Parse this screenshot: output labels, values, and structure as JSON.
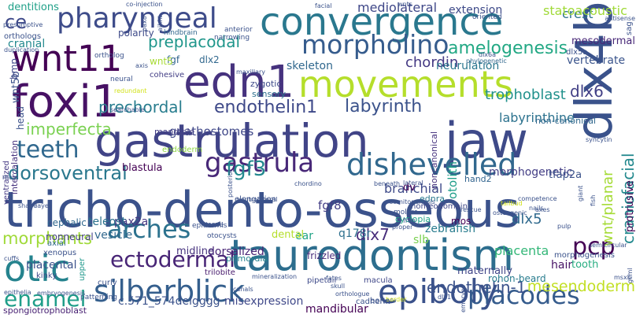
{
  "word_cloud": {
    "background": "#ffffff",
    "palette": [
      "#440154",
      "#46327e",
      "#365c8d",
      "#277f8e",
      "#1fa187",
      "#4ac16d",
      "#a0da39",
      "#d2e21b"
    ],
    "words": [
      {
        "text": "tricho-dento-osseous",
        "color": "#3b528b"
      },
      {
        "text": "taurodontism",
        "color": "#2d6e8e"
      },
      {
        "text": "gastrulation",
        "color": "#414487"
      },
      {
        "text": "convergence",
        "color": "#2a788e"
      },
      {
        "text": "movements",
        "color": "#b5de2b"
      },
      {
        "text": "dlx4b",
        "color": "#3a528b"
      },
      {
        "text": "jaw",
        "color": "#3e4a89"
      },
      {
        "text": "edn1",
        "color": "#46327e"
      },
      {
        "text": "foxi1",
        "color": "#471164"
      },
      {
        "text": "wnt11",
        "color": "#440154"
      },
      {
        "text": "pharyngeal",
        "color": "#3e4c8a"
      },
      {
        "text": "otic",
        "color": "#25838e"
      },
      {
        "text": "epiboly",
        "color": "#3b528b"
      },
      {
        "text": "silberblick",
        "color": "#355f8d"
      },
      {
        "text": "dishevelled",
        "color": "#31688e"
      },
      {
        "text": "gastrula",
        "color": "#482878"
      },
      {
        "text": "morpholino",
        "color": "#365c8d"
      },
      {
        "text": "placodes",
        "color": "#365c8d"
      },
      {
        "text": "arches",
        "color": "#2c728e"
      },
      {
        "text": "pcp",
        "color": "#440154"
      },
      {
        "text": "ectodermal",
        "color": "#482576"
      },
      {
        "text": "teeth",
        "color": "#30688e"
      },
      {
        "text": "enamel",
        "color": "#1f9e89"
      },
      {
        "text": "fgf3",
        "color": "#23898e"
      },
      {
        "text": "ce",
        "color": "#3e4989"
      },
      {
        "text": "prechordal",
        "color": "#287d8e"
      },
      {
        "text": "endothelin1",
        "color": "#3e4989"
      },
      {
        "text": "labyrinth",
        "color": "#3b528b"
      },
      {
        "text": "dorsoventral",
        "color": "#2a788e"
      },
      {
        "text": "amelogenesis",
        "color": "#22a884"
      },
      {
        "text": "wnt/planar",
        "color": "#a5db36"
      },
      {
        "text": "craniofacial",
        "color": "#23898e"
      },
      {
        "text": "preplacodal",
        "color": "#1f968b"
      },
      {
        "text": "morphants",
        "color": "#a0da39"
      },
      {
        "text": "mesendoderm",
        "color": "#c2df23"
      },
      {
        "text": "imperfecta",
        "color": "#7ad151"
      },
      {
        "text": "endothelin-1",
        "color": "#3b528b"
      },
      {
        "text": "dlx6",
        "color": "#424086"
      },
      {
        "text": "mediolateral",
        "color": "#3f4788"
      },
      {
        "text": "trophoblast",
        "color": "#21918c"
      },
      {
        "text": "labyrinthine",
        "color": "#2c728e"
      },
      {
        "text": "otolith",
        "color": "#1f9e89"
      },
      {
        "text": "crest",
        "color": "#2c728e"
      },
      {
        "text": "dlx7",
        "color": "#472d7b"
      },
      {
        "text": "dlx5",
        "color": "#306a8e"
      },
      {
        "text": "mandibular",
        "color": "#440154"
      },
      {
        "text": "chordin",
        "color": "#443983"
      },
      {
        "text": "skeleton",
        "color": "#31688e"
      },
      {
        "text": "placenta",
        "color": "#35b779"
      },
      {
        "text": "fgf8",
        "color": "#433e85"
      },
      {
        "text": "branchial",
        "color": "#3e4a89"
      },
      {
        "text": "gnathostomes",
        "color": "#3f4788"
      },
      {
        "text": "morphogenetic",
        "color": "#433e85"
      },
      {
        "text": "dorsalized",
        "color": "#482475"
      },
      {
        "text": "midline",
        "color": "#46327e"
      },
      {
        "text": "vertebrate",
        "color": "#3a548c"
      },
      {
        "text": "neurulation",
        "color": "#2a768e"
      },
      {
        "text": "placental",
        "color": "#3b528b"
      },
      {
        "text": "cranial",
        "color": "#23898e"
      },
      {
        "text": "dentitions",
        "color": "#1fa088"
      },
      {
        "text": "statoacoustic",
        "color": "#a0da39"
      },
      {
        "text": "extension",
        "color": "#3e4a89"
      },
      {
        "text": "protrusive",
        "color": "#440154"
      },
      {
        "text": "hair",
        "color": "#471365"
      },
      {
        "text": "tooth",
        "color": "#27ad81"
      },
      {
        "text": "maternally",
        "color": "#404588"
      },
      {
        "text": "ear",
        "color": "#20a386"
      },
      {
        "text": "pax2a",
        "color": "#453882"
      },
      {
        "text": "vesicle",
        "color": "#31688e"
      },
      {
        "text": "zebrafish",
        "color": "#287c8e"
      },
      {
        "text": "q178r",
        "color": "#2d708e"
      },
      {
        "text": "slb",
        "color": "#7ad151"
      },
      {
        "text": "c.571_574delgggg",
        "color": "#3b528b"
      },
      {
        "text": "misexpression",
        "color": "#3f4889"
      },
      {
        "text": "spongiotrophoblast",
        "color": "#482173"
      },
      {
        "text": "rohon-beard",
        "color": "#287c8e"
      },
      {
        "text": "dv",
        "color": "#440154"
      },
      {
        "text": "ednra",
        "color": "#29798e"
      },
      {
        "text": "mos",
        "color": "#440154"
      },
      {
        "text": "polarity",
        "color": "#3e4a89"
      },
      {
        "text": "fgf",
        "color": "#32648e"
      },
      {
        "text": "wnt5",
        "color": "#a8db34"
      },
      {
        "text": "dlx2",
        "color": "#31688e"
      },
      {
        "text": "blastula",
        "color": "#440154"
      },
      {
        "text": "sensory",
        "color": "#2d708e"
      },
      {
        "text": "zygotic",
        "color": "#3e4a89"
      },
      {
        "text": "mandible",
        "color": "#433e85"
      },
      {
        "text": "endoderm",
        "color": "#8fd744"
      },
      {
        "text": "hand2",
        "color": "#32648e"
      },
      {
        "text": "tfap2a",
        "color": "#3b528b"
      },
      {
        "text": "teleost",
        "color": "#2c728e"
      },
      {
        "text": "cephalic",
        "color": "#31688e"
      },
      {
        "text": "nonneural",
        "color": "#433e85"
      },
      {
        "text": "dental",
        "color": "#b5de2b"
      },
      {
        "text": "primordia",
        "color": "#26828e"
      },
      {
        "text": "frizzled",
        "color": "#472d7b"
      },
      {
        "text": "homeodomain",
        "color": "#3f4788"
      },
      {
        "text": "cyclopia",
        "color": "#20a386"
      },
      {
        "text": "axial",
        "color": "#31688e"
      },
      {
        "text": "xenopus",
        "color": "#3b528b"
      },
      {
        "text": "upper",
        "color": "#1f988b"
      },
      {
        "text": "kinky",
        "color": "#3e4989"
      },
      {
        "text": "trilobite",
        "color": "#481b6d"
      },
      {
        "text": "macula",
        "color": "#3f4788"
      },
      {
        "text": "pipetail",
        "color": "#3e4a89"
      },
      {
        "text": "bones",
        "color": "#3b528b"
      },
      {
        "text": "morphogenesis",
        "color": "#3b528b"
      },
      {
        "text": "wnt5b",
        "color": "#3b528b"
      },
      {
        "text": "bmp",
        "color": "#3f4788"
      },
      {
        "text": "head",
        "color": "#3b528b"
      },
      {
        "text": "intercalation",
        "color": "#46327e"
      },
      {
        "text": "ventralized",
        "color": "#443983"
      },
      {
        "text": "noncanonical",
        "color": "#46327e"
      },
      {
        "text": "elongation",
        "color": "#3b528b"
      },
      {
        "text": "non-canonical",
        "color": "#31688e"
      },
      {
        "text": "mesodermal",
        "color": "#482878"
      },
      {
        "text": "sag",
        "color": "#3b528b"
      },
      {
        "text": "dlx5a",
        "color": "#3b528b"
      },
      {
        "text": "hindbrain",
        "color": "#31688e"
      },
      {
        "text": "narrowing",
        "color": "#3b528b"
      },
      {
        "text": "anterior",
        "color": "#3b528b"
      },
      {
        "text": "cohesive",
        "color": "#433e85"
      },
      {
        "text": "maxillary",
        "color": "#3b528b"
      },
      {
        "text": "neural",
        "color": "#3b528b"
      },
      {
        "text": "phylogenetic",
        "color": "#31688e"
      },
      {
        "text": "ortholog",
        "color": "#3b528b"
      },
      {
        "text": "orthologs",
        "color": "#3b528b"
      },
      {
        "text": "duplication",
        "color": "#3b528b"
      },
      {
        "text": "presumptive",
        "color": "#3b528b"
      },
      {
        "text": "pax8",
        "color": "#3b528b"
      },
      {
        "text": "facial",
        "color": "#3b528b"
      },
      {
        "text": "wnts",
        "color": "#3b528b"
      },
      {
        "text": "oriented",
        "color": "#3b528b"
      },
      {
        "text": "antisense",
        "color": "#3b528b"
      },
      {
        "text": "co-injection",
        "color": "#3b528b"
      },
      {
        "text": "redundant",
        "color": "#d2e21b"
      },
      {
        "text": "searchable",
        "color": "#3b528b"
      },
      {
        "text": "axis",
        "color": "#3b528b"
      },
      {
        "text": "aihht",
        "color": "#3b528b"
      },
      {
        "text": "cuffs",
        "color": "#3b528b"
      },
      {
        "text": "epithelia",
        "color": "#3b528b"
      },
      {
        "text": "embryogenesis",
        "color": "#3b528b"
      },
      {
        "text": "patterning",
        "color": "#3b528b"
      },
      {
        "text": "curly",
        "color": "#3b528b"
      },
      {
        "text": "border",
        "color": "#d2e21b"
      },
      {
        "text": "orthologue",
        "color": "#3b528b"
      },
      {
        "text": "embryos",
        "color": "#3b528b"
      },
      {
        "text": "gcml",
        "color": "#3b528b"
      },
      {
        "text": "msxb",
        "color": "#3b528b"
      },
      {
        "text": "dlx1",
        "color": "#3b528b"
      },
      {
        "text": "cadherin",
        "color": "#3b528b"
      },
      {
        "text": "syncytin",
        "color": "#3b528b"
      },
      {
        "text": "tailbud",
        "color": "#d2e21b"
      },
      {
        "text": "nails",
        "color": "#3b528b"
      },
      {
        "text": "giant",
        "color": "#3b528b"
      },
      {
        "text": "competence",
        "color": "#3b528b"
      },
      {
        "text": "pulp",
        "color": "#3b528b"
      },
      {
        "text": "semicircular",
        "color": "#3b528b"
      },
      {
        "text": "beneath",
        "color": "#3b528b"
      },
      {
        "text": "lateral",
        "color": "#3b528b"
      },
      {
        "text": "rescue",
        "color": "#3b528b"
      },
      {
        "text": "somitogenesis",
        "color": "#3b528b"
      },
      {
        "text": "molars",
        "color": "#3b528b"
      },
      {
        "text": "proper",
        "color": "#3b528b"
      },
      {
        "text": "skull",
        "color": "#3b528b"
      },
      {
        "text": "fates",
        "color": "#3b528b"
      },
      {
        "text": "otocysts",
        "color": "#3b528b"
      },
      {
        "text": "epidermis",
        "color": "#3b528b"
      },
      {
        "text": "msxe",
        "color": "#3b528b"
      },
      {
        "text": "rhoa",
        "color": "#3b528b"
      },
      {
        "text": "shape",
        "color": "#3b528b"
      },
      {
        "text": "layer",
        "color": "#3b528b"
      },
      {
        "text": "axes",
        "color": "#3b528b"
      },
      {
        "text": "osteogenic",
        "color": "#3b528b"
      },
      {
        "text": "ventrolateral",
        "color": "#3b528b"
      },
      {
        "text": "mineralization",
        "color": "#3b528b"
      },
      {
        "text": "chordino",
        "color": "#3b528b"
      },
      {
        "text": "posterior",
        "color": "#3b528b"
      },
      {
        "text": "dlx6a",
        "color": "#3b528b"
      },
      {
        "text": "fish",
        "color": "#3b528b"
      },
      {
        "text": "canals",
        "color": "#3b528b"
      },
      {
        "text": "frog",
        "color": "#3b528b"
      },
      {
        "text": "swirl",
        "color": "#3b528b"
      },
      {
        "text": "gcml",
        "color": "#3b528b"
      },
      {
        "text": "bmp2b",
        "color": "#3b528b"
      }
    ]
  }
}
